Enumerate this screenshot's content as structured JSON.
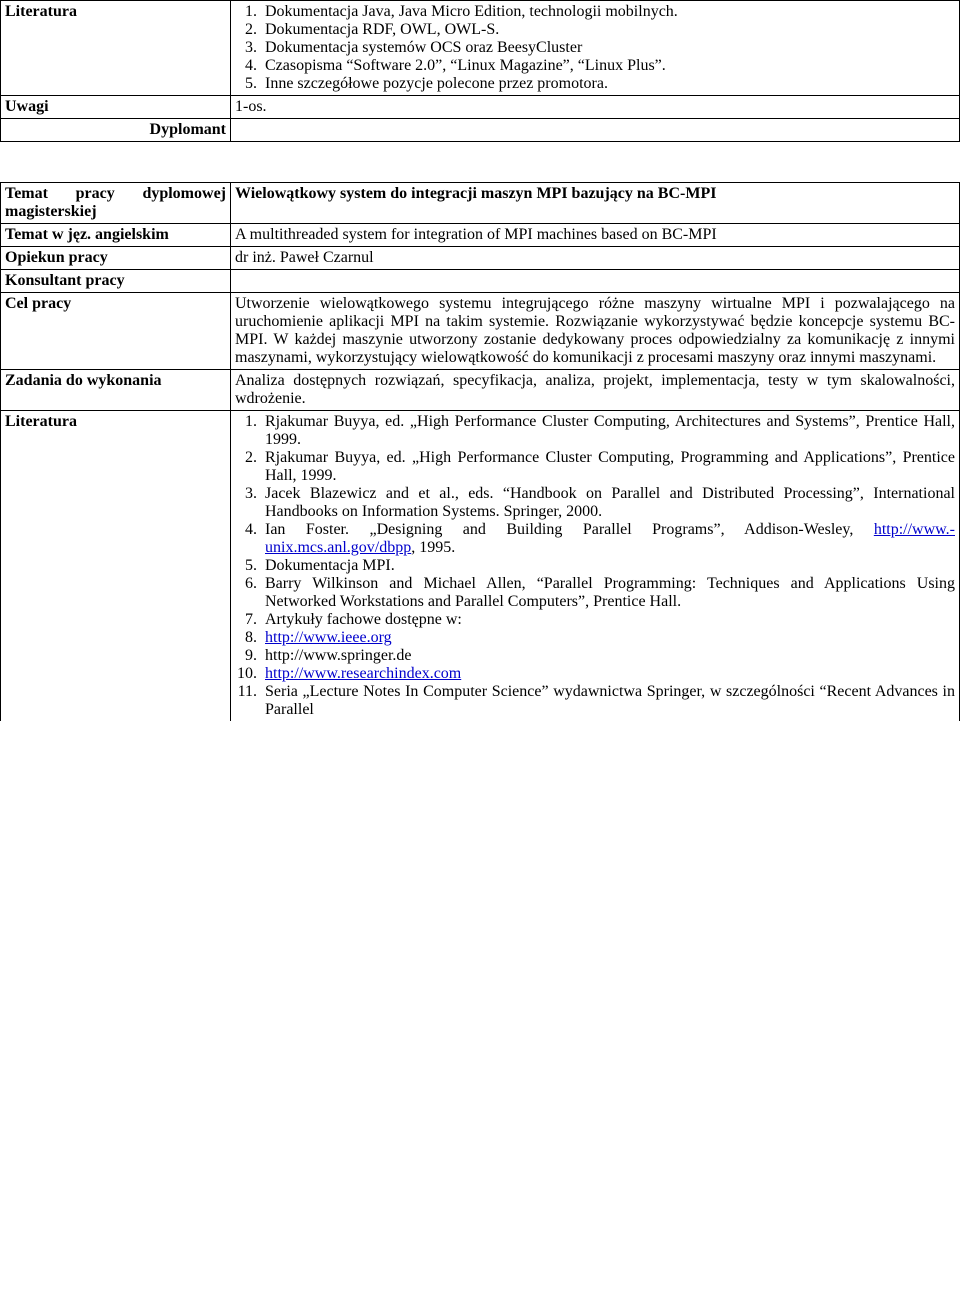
{
  "top": {
    "rows": [
      {
        "label": "Literatura",
        "items": [
          "Dokumentacja Java, Java Micro Edition, technologii mobilnych.",
          "Dokumentacja RDF, OWL, OWL-S.",
          "Dokumentacja systemów OCS oraz BeesyCluster",
          "Czasopisma “Software 2.0”, “Linux Magazine”, “Linux Plus”.",
          "Inne szczegółowe pozycje polecone przez promotora."
        ]
      },
      {
        "label": "Uwagi",
        "text": "1-os."
      },
      {
        "label": "Dyplomant",
        "text": ""
      }
    ]
  },
  "bottom": {
    "rows": [
      {
        "label": "Temat pracy dyplomowej magisterskiej",
        "text": "Wielowątkowy system do integracji maszyn MPI bazujący na BC-MPI",
        "bold": true
      },
      {
        "label": "Temat w jęz. angielskim",
        "text": "A multithreaded system for integration of MPI machines based on BC-MPI"
      },
      {
        "label": "Opiekun pracy",
        "text": "dr inż. Paweł Czarnul"
      },
      {
        "label": "Konsultant pracy",
        "text": ""
      },
      {
        "label": "Cel pracy",
        "text": "Utworzenie wielowątkowego systemu integrującego różne maszyny wirtualne MPI i pozwalającego na uruchomienie aplikacji MPI na takim systemie. Rozwiązanie wykorzystywać będzie koncepcje systemu BC-MPI. W każdej maszynie utworzony zostanie dedykowany proces odpowiedzialny za komunikację z innymi maszynami, wykorzystujący wielowątkowość do komunikacji z procesami maszyny oraz innymi maszynami."
      },
      {
        "label": "Zadania do wykonania",
        "text": "Analiza dostępnych rozwiązań, specyfikacja, analiza, projekt, implementacja, testy w tym skalowalności, wdrożenie."
      }
    ],
    "literatura_label": "Literatura",
    "literatura_items": [
      {
        "text": "Rjakumar Buyya, ed. „High Performance Cluster Computing, Architectures and Systems”, Prentice Hall, 1999."
      },
      {
        "text": "Rjakumar Buyya, ed. „High Performance Cluster Computing, Programming and Applications”, Prentice Hall, 1999."
      },
      {
        "text": "Jacek Blazewicz and et al., eds. “Handbook on Parallel and Distributed Processing”, International Handbooks on Information Systems. Springer, 2000."
      },
      {
        "text_pre": "Ian Foster. „Designing and Building Parallel Programs”, Addison-Wesley, ",
        "link": "http://www.-unix.mcs.anl.gov/dbpp",
        "text_post": ", 1995."
      },
      {
        "text": "Dokumentacja MPI."
      },
      {
        "text": "Barry Wilkinson and Michael Allen, “Parallel Programming: Techniques and Applications Using Networked Workstations and Parallel Computers”, Prentice Hall."
      },
      {
        "text": "Artykuły fachowe dostępne w:"
      },
      {
        "link": "http://www.ieee.org"
      },
      {
        "text": "http://www.springer.de"
      },
      {
        "link": "http://www.researchindex.com"
      },
      {
        "text": "Seria „Lecture Notes In Computer Science” wydawnictwa Springer, w szczególności “Recent Advances in Parallel"
      }
    ]
  }
}
